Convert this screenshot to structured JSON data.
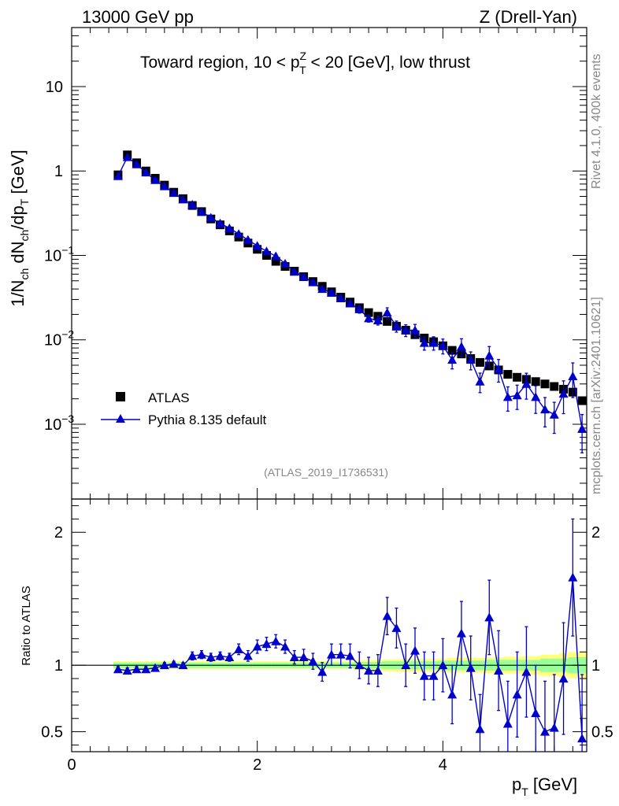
{
  "header": {
    "left": "13000 GeV pp",
    "right": "Z (Drell-Yan)"
  },
  "side_labels": {
    "rivet": "Rivet 4.1.0,  400k events",
    "mcplots": "mcplots.cern.ch [arXiv:2401.10621]"
  },
  "colors": {
    "data": "#000000",
    "mc": "#0000cc",
    "band_inner": "#99ff99",
    "band_outer": "#ffff80",
    "watermark": "#888888"
  },
  "chart_data": [
    {
      "type": "scatter",
      "panel": "main",
      "title": "Toward region, 10 < p_T^Z < 20 [GeV], low thrust",
      "title_parts": [
        "Toward region, 10 < p",
        "Z",
        "T",
        " < 20 [GeV], low thrust"
      ],
      "ylabel": "1/N_ch dN_ch/dp_T [GeV]",
      "ylabel_parts": [
        "1/N",
        "ch",
        " dN",
        "ch",
        "/dp",
        "T",
        " [GeV]"
      ],
      "yscale": "log",
      "ylim": [
        0.00013,
        50
      ],
      "xlim": [
        0,
        5.55
      ],
      "y_ticks": [
        {
          "value": 0.001,
          "base": "10",
          "exp": "−3"
        },
        {
          "value": 0.01,
          "base": "10",
          "exp": "−2"
        },
        {
          "value": 0.1,
          "base": "10",
          "exp": "−1"
        },
        {
          "value": 1,
          "label": "1"
        },
        {
          "value": 10,
          "label": "10"
        }
      ],
      "watermark": "(ATLAS_2019_I1736531)",
      "legend": {
        "position": "bottom-left",
        "entries": [
          "ATLAS",
          "Pythia 8.135 default"
        ]
      },
      "x": [
        0.5,
        0.6,
        0.7,
        0.8,
        0.9,
        1.0,
        1.1,
        1.2,
        1.3,
        1.4,
        1.5,
        1.6,
        1.7,
        1.8,
        1.9,
        2.0,
        2.1,
        2.2,
        2.3,
        2.4,
        2.5,
        2.6,
        2.7,
        2.8,
        2.9,
        3.0,
        3.1,
        3.2,
        3.3,
        3.4,
        3.5,
        3.6,
        3.7,
        3.8,
        3.9,
        4.0,
        4.1,
        4.2,
        4.3,
        4.4,
        4.5,
        4.6,
        4.7,
        4.8,
        4.9,
        5.0,
        5.1,
        5.2,
        5.3,
        5.4,
        5.5
      ],
      "series": [
        {
          "name": "ATLAS",
          "marker": "square",
          "values": [
            0.9,
            1.55,
            1.25,
            1.0,
            0.82,
            0.68,
            0.56,
            0.47,
            0.39,
            0.33,
            0.27,
            0.23,
            0.195,
            0.165,
            0.14,
            0.118,
            0.1,
            0.085,
            0.074,
            0.065,
            0.056,
            0.049,
            0.043,
            0.037,
            0.032,
            0.028,
            0.024,
            0.021,
            0.019,
            0.0165,
            0.0145,
            0.013,
            0.0115,
            0.0105,
            0.0095,
            0.0085,
            0.0075,
            0.0068,
            0.006,
            0.0054,
            0.0049,
            0.0044,
            0.0039,
            0.0036,
            0.0034,
            0.0032,
            0.003,
            0.0028,
            0.0026,
            0.0024,
            0.0019
          ]
        },
        {
          "name": "Pythia 8.135 default",
          "marker": "triangle",
          "values": [
            0.87,
            1.46,
            1.2,
            0.96,
            0.78,
            0.66,
            0.55,
            0.46,
            0.4,
            0.33,
            0.28,
            0.24,
            0.21,
            0.18,
            0.153,
            0.13,
            0.112,
            0.098,
            0.08,
            0.064,
            0.056,
            0.048,
            0.04,
            0.036,
            0.031,
            0.027,
            0.023,
            0.018,
            0.017,
            0.021,
            0.0145,
            0.013,
            0.013,
            0.0092,
            0.0092,
            0.0085,
            0.0058,
            0.0083,
            0.0058,
            0.0032,
            0.0065,
            0.0045,
            0.0021,
            0.0022,
            0.003,
            0.0021,
            0.0015,
            0.0013,
            0.0023,
            0.0037,
            0.00088
          ]
        }
      ]
    },
    {
      "type": "scatter",
      "panel": "ratio",
      "ylabel": "Ratio to ATLAS",
      "xlabel": "p_T [GeV]",
      "xlabel_parts": [
        "p",
        "T",
        " [GeV]"
      ],
      "ylim": [
        0.35,
        2.25
      ],
      "xlim": [
        0,
        5.55
      ],
      "x_ticks": [
        0,
        2,
        4
      ],
      "y_ticks": [
        0.5,
        1,
        2
      ],
      "reference": 1,
      "x": [
        0.5,
        0.6,
        0.7,
        0.8,
        0.9,
        1.0,
        1.1,
        1.2,
        1.3,
        1.4,
        1.5,
        1.6,
        1.7,
        1.8,
        1.9,
        2.0,
        2.1,
        2.2,
        2.3,
        2.4,
        2.5,
        2.6,
        2.7,
        2.8,
        2.9,
        3.0,
        3.1,
        3.2,
        3.3,
        3.4,
        3.5,
        3.6,
        3.7,
        3.8,
        3.9,
        4.0,
        4.1,
        4.2,
        4.3,
        4.4,
        4.5,
        4.6,
        4.7,
        4.8,
        4.9,
        5.0,
        5.1,
        5.2,
        5.3,
        5.4,
        5.5
      ],
      "series": [
        {
          "name": "Pythia 8.135 default / ATLAS",
          "values": [
            0.97,
            0.96,
            0.97,
            0.97,
            0.98,
            1.0,
            1.01,
            1.0,
            1.07,
            1.08,
            1.06,
            1.07,
            1.06,
            1.12,
            1.07,
            1.14,
            1.16,
            1.18,
            1.14,
            1.06,
            1.06,
            1.03,
            0.95,
            1.08,
            1.08,
            1.07,
            1.0,
            0.96,
            0.96,
            1.37,
            1.28,
            1.0,
            1.11,
            0.92,
            0.92,
            1.0,
            0.78,
            1.24,
            0.98,
            0.52,
            1.36,
            0.96,
            0.56,
            0.78,
            0.95,
            0.64,
            0.5,
            0.53,
            0.9,
            1.66,
            0.45
          ],
          "errors": [
            0.02,
            0.02,
            0.02,
            0.02,
            0.02,
            0.02,
            0.02,
            0.02,
            0.03,
            0.03,
            0.03,
            0.03,
            0.03,
            0.04,
            0.04,
            0.05,
            0.05,
            0.05,
            0.05,
            0.05,
            0.06,
            0.06,
            0.07,
            0.08,
            0.08,
            0.09,
            0.1,
            0.1,
            0.12,
            0.14,
            0.15,
            0.16,
            0.17,
            0.18,
            0.18,
            0.2,
            0.22,
            0.24,
            0.24,
            0.26,
            0.28,
            0.3,
            0.32,
            0.32,
            0.34,
            0.36,
            0.38,
            0.4,
            0.42,
            0.44,
            0.48
          ]
        }
      ],
      "band_inner_halfwidth": [
        0.02,
        0.02,
        0.02,
        0.02,
        0.02,
        0.02,
        0.02,
        0.02,
        0.02,
        0.02,
        0.02,
        0.02,
        0.02,
        0.02,
        0.02,
        0.02,
        0.02,
        0.02,
        0.02,
        0.02,
        0.02,
        0.02,
        0.02,
        0.02,
        0.02,
        0.02,
        0.025,
        0.025,
        0.025,
        0.03,
        0.03,
        0.03,
        0.03,
        0.03,
        0.03,
        0.035,
        0.035,
        0.035,
        0.035,
        0.035,
        0.04,
        0.04,
        0.04,
        0.04,
        0.04,
        0.04,
        0.05,
        0.05,
        0.05,
        0.06,
        0.06
      ],
      "band_outer_halfwidth": [
        0.03,
        0.03,
        0.03,
        0.03,
        0.03,
        0.03,
        0.03,
        0.03,
        0.03,
        0.03,
        0.03,
        0.03,
        0.03,
        0.03,
        0.03,
        0.03,
        0.03,
        0.03,
        0.03,
        0.03,
        0.03,
        0.03,
        0.03,
        0.03,
        0.03,
        0.03,
        0.04,
        0.04,
        0.04,
        0.045,
        0.045,
        0.05,
        0.05,
        0.05,
        0.05,
        0.05,
        0.055,
        0.055,
        0.055,
        0.055,
        0.06,
        0.06,
        0.065,
        0.065,
        0.07,
        0.07,
        0.08,
        0.08,
        0.09,
        0.1,
        0.1
      ]
    }
  ]
}
